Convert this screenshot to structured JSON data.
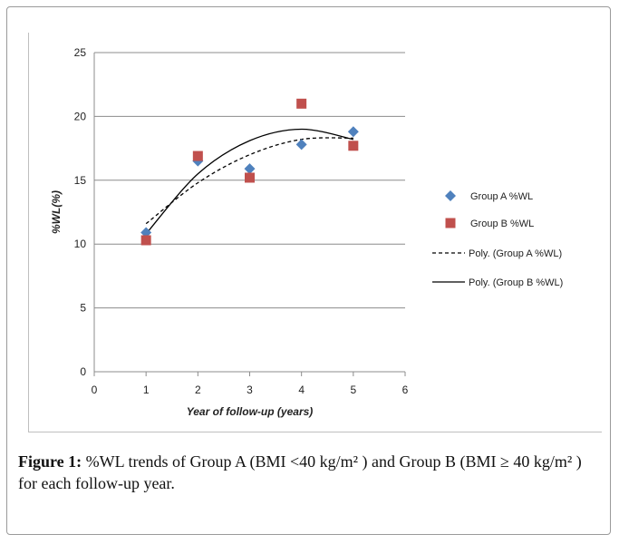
{
  "chart_data": {
    "type": "scatter",
    "xlabel": "Year of follow-up (years)",
    "ylabel": "%WL(%)",
    "xlim": [
      0,
      6
    ],
    "ylim": [
      0,
      25
    ],
    "x_ticks": [
      0,
      1,
      2,
      3,
      4,
      5,
      6
    ],
    "y_ticks": [
      0,
      5,
      10,
      15,
      20,
      25
    ],
    "grid": "horizontal",
    "legend_position": "right",
    "series": [
      {
        "name": "Group A %WL",
        "kind": "points",
        "marker": "diamond",
        "color": "#4f81bd",
        "x": [
          1,
          2,
          3,
          4,
          5
        ],
        "y": [
          10.9,
          16.5,
          15.9,
          17.8,
          18.8
        ]
      },
      {
        "name": "Group B %WL",
        "kind": "points",
        "marker": "square",
        "color": "#c0504d",
        "x": [
          1,
          2,
          3,
          4,
          5
        ],
        "y": [
          10.3,
          16.9,
          15.2,
          21.0,
          17.7
        ]
      },
      {
        "name": "Poly. (Group A %WL)",
        "kind": "trend",
        "dash": "dashed",
        "color": "#000000",
        "x": [
          1,
          2,
          3,
          4,
          5
        ],
        "y": [
          11.6,
          14.8,
          17.0,
          18.2,
          18.3
        ]
      },
      {
        "name": "Poly. (Group B %WL)",
        "kind": "trend",
        "dash": "solid",
        "color": "#000000",
        "x": [
          1,
          2,
          3,
          4,
          5
        ],
        "y": [
          10.8,
          15.5,
          18.1,
          19.0,
          18.2
        ]
      }
    ]
  },
  "caption": {
    "label": "Figure 1:",
    "text": " %WL trends of Group A (BMI <40 kg/m² ) and Group B (BMI ≥ 40 kg/m² ) for each follow-up year."
  }
}
